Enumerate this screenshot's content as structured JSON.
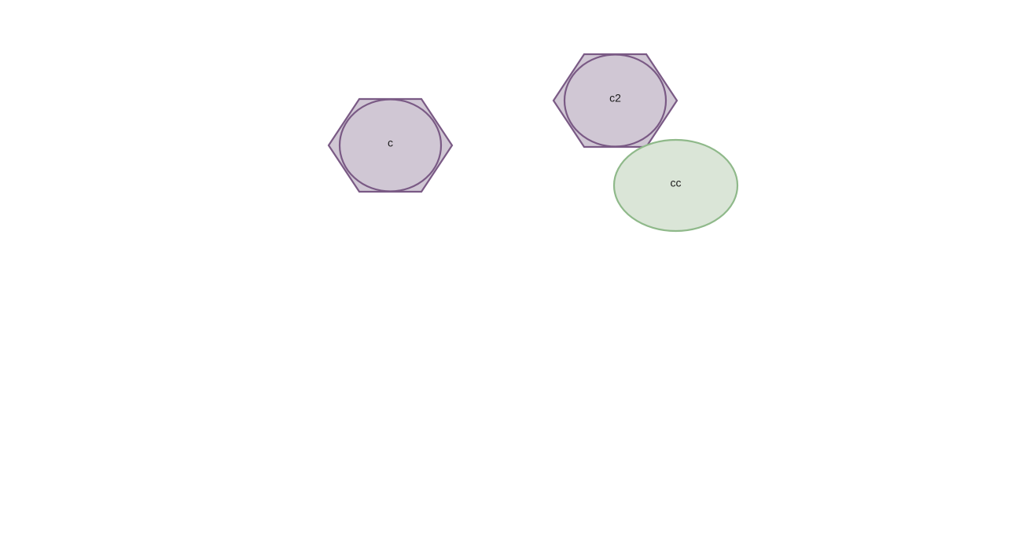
{
  "colors": {
    "purple_fill": "#d0c7d4",
    "purple_stroke": "#7a5a85",
    "green_fill": "#dae5d7",
    "green_stroke": "#8fb98a",
    "background": "#ffffff"
  },
  "nodes": [
    {
      "id": "c",
      "label": "c",
      "shape": "hexagon-with-ellipse",
      "color": "purple"
    },
    {
      "id": "c2",
      "label": "c2",
      "shape": "hexagon-with-ellipse",
      "color": "purple"
    },
    {
      "id": "cc",
      "label": "cc",
      "shape": "ellipse",
      "color": "green"
    }
  ]
}
